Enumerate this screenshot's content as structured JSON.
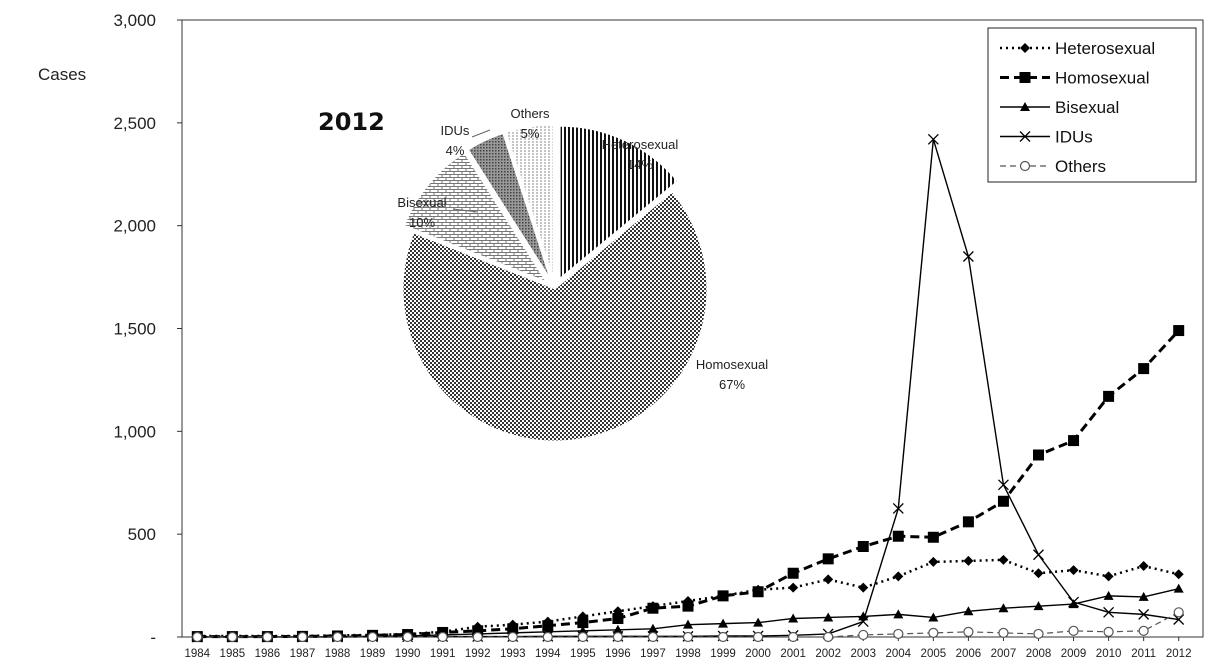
{
  "chart_data": [
    {
      "type": "line",
      "ylabel": "Cases",
      "ylim": [
        0,
        3000
      ],
      "yticks": [
        "-",
        "500",
        "1,000",
        "1,500",
        "2,000",
        "2,500",
        "3,000"
      ],
      "ytick_values": [
        0,
        500,
        1000,
        1500,
        2000,
        2500,
        3000
      ],
      "x": [
        "1984",
        "1985",
        "1986",
        "1987",
        "1988",
        "1989",
        "1990",
        "1991",
        "1992",
        "1993",
        "1994",
        "1995",
        "1996",
        "1997",
        "1998",
        "1999",
        "2000",
        "2001",
        "2002",
        "2003",
        "2004",
        "2005",
        "2006",
        "2007",
        "2008",
        "2009",
        "2010",
        "2011",
        "2012"
      ],
      "grid": false,
      "legend_position": "top-right",
      "series": [
        {
          "name": "Heterosexual",
          "marker": "diamond",
          "line": "dotted",
          "values": [
            5,
            5,
            5,
            5,
            8,
            10,
            15,
            25,
            50,
            60,
            75,
            100,
            125,
            150,
            175,
            200,
            230,
            240,
            280,
            240,
            295,
            365,
            370,
            375,
            310,
            325,
            295,
            345,
            305
          ]
        },
        {
          "name": "Homosexual",
          "marker": "square",
          "line": "dashed",
          "values": [
            2,
            2,
            2,
            3,
            5,
            8,
            12,
            22,
            30,
            40,
            55,
            70,
            90,
            140,
            150,
            200,
            220,
            310,
            380,
            440,
            490,
            485,
            560,
            660,
            885,
            955,
            1170,
            1305,
            1490
          ]
        },
        {
          "name": "Bisexual",
          "marker": "triangle",
          "line": "solid",
          "values": [
            1,
            1,
            1,
            1,
            2,
            3,
            5,
            10,
            15,
            20,
            25,
            30,
            35,
            40,
            60,
            65,
            70,
            90,
            95,
            100,
            110,
            95,
            125,
            140,
            150,
            160,
            200,
            195,
            235
          ]
        },
        {
          "name": "IDUs",
          "marker": "x",
          "line": "solid",
          "values": [
            0,
            0,
            0,
            0,
            0,
            1,
            1,
            2,
            2,
            2,
            3,
            3,
            3,
            3,
            3,
            5,
            5,
            8,
            15,
            75,
            625,
            2420,
            1850,
            740,
            400,
            170,
            120,
            110,
            85
          ]
        },
        {
          "name": "Others",
          "marker": "circle-open",
          "line": "dashed-light",
          "values": [
            0,
            0,
            0,
            0,
            0,
            0,
            0,
            0,
            0,
            0,
            0,
            0,
            0,
            0,
            0,
            0,
            0,
            0,
            0,
            10,
            15,
            20,
            25,
            20,
            15,
            30,
            25,
            30,
            120
          ]
        }
      ]
    },
    {
      "type": "pie",
      "title": "2012",
      "slices": [
        {
          "name": "Heterosexual",
          "percent": 14,
          "label": "14%",
          "pattern": "vertical",
          "exploded": true
        },
        {
          "name": "Homosexual",
          "percent": 67,
          "label": "67%",
          "pattern": "checker",
          "exploded": false
        },
        {
          "name": "Bisexual",
          "percent": 10,
          "label": "10%",
          "pattern": "brick",
          "exploded": true
        },
        {
          "name": "IDUs",
          "percent": 4,
          "label": "4%",
          "pattern": "dense-dots",
          "exploded": true
        },
        {
          "name": "Others",
          "percent": 5,
          "label": "5%",
          "pattern": "horizontal-light",
          "exploded": true
        }
      ]
    }
  ]
}
